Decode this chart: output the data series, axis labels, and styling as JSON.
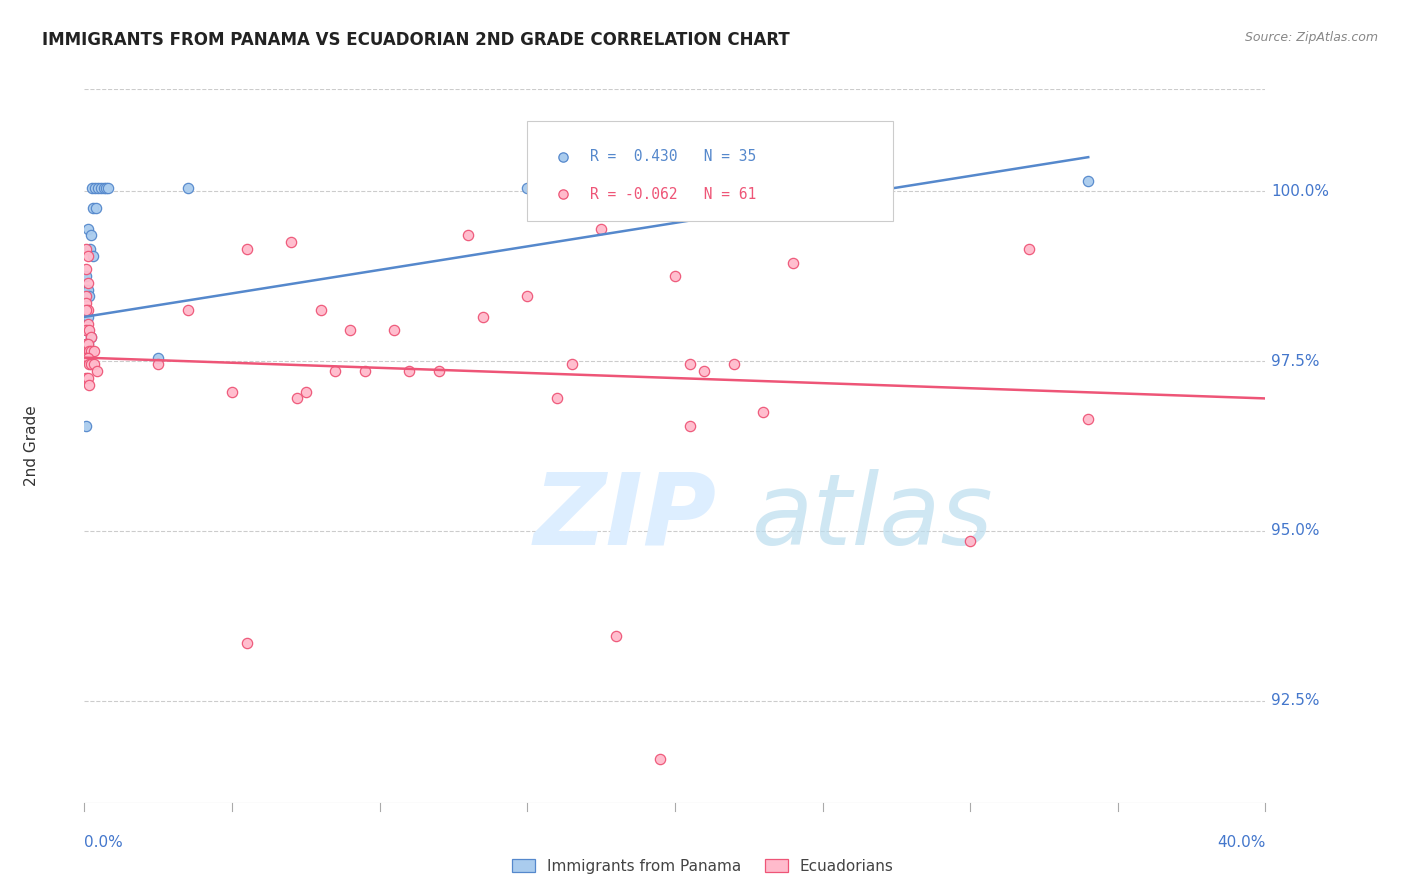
{
  "title": "IMMIGRANTS FROM PANAMA VS ECUADORIAN 2ND GRADE CORRELATION CHART",
  "source": "Source: ZipAtlas.com",
  "ylabel": "2nd Grade",
  "xlim": [
    0.0,
    40.0
  ],
  "ylim": [
    91.0,
    101.5
  ],
  "yticks": [
    92.5,
    95.0,
    97.5,
    100.0
  ],
  "ytick_labels": [
    "92.5%",
    "95.0%",
    "97.5%",
    "100.0%"
  ],
  "legend_label_blue": "Immigrants from Panama",
  "legend_label_pink": "Ecuadorians",
  "blue_scatter": [
    [
      0.25,
      100.05
    ],
    [
      0.35,
      100.05
    ],
    [
      0.45,
      100.05
    ],
    [
      0.55,
      100.05
    ],
    [
      0.65,
      100.05
    ],
    [
      0.72,
      100.05
    ],
    [
      0.8,
      100.05
    ],
    [
      0.28,
      99.75
    ],
    [
      0.38,
      99.75
    ],
    [
      0.12,
      99.45
    ],
    [
      0.22,
      99.35
    ],
    [
      0.18,
      99.15
    ],
    [
      0.28,
      99.05
    ],
    [
      3.5,
      100.05
    ],
    [
      0.06,
      98.75
    ],
    [
      0.06,
      98.55
    ],
    [
      0.06,
      98.45
    ],
    [
      0.12,
      98.55
    ],
    [
      0.16,
      98.45
    ],
    [
      0.06,
      98.25
    ],
    [
      0.12,
      98.15
    ],
    [
      0.06,
      97.95
    ],
    [
      0.12,
      97.95
    ],
    [
      0.22,
      97.85
    ],
    [
      0.06,
      97.75
    ],
    [
      0.12,
      97.75
    ],
    [
      0.16,
      97.65
    ],
    [
      0.06,
      97.55
    ],
    [
      0.12,
      97.55
    ],
    [
      2.5,
      97.55
    ],
    [
      0.06,
      96.55
    ],
    [
      15.0,
      100.05
    ],
    [
      24.0,
      100.1
    ],
    [
      34.0,
      100.15
    ]
  ],
  "pink_scatter": [
    [
      0.06,
      99.15
    ],
    [
      0.12,
      99.05
    ],
    [
      0.06,
      98.85
    ],
    [
      0.12,
      98.65
    ],
    [
      0.06,
      98.45
    ],
    [
      0.06,
      98.35
    ],
    [
      0.12,
      98.25
    ],
    [
      0.06,
      98.25
    ],
    [
      0.12,
      98.05
    ],
    [
      0.06,
      97.95
    ],
    [
      0.16,
      97.95
    ],
    [
      0.22,
      97.85
    ],
    [
      0.06,
      97.75
    ],
    [
      0.12,
      97.75
    ],
    [
      0.16,
      97.65
    ],
    [
      0.22,
      97.65
    ],
    [
      0.32,
      97.65
    ],
    [
      0.06,
      97.55
    ],
    [
      0.12,
      97.55
    ],
    [
      0.16,
      97.45
    ],
    [
      0.22,
      97.45
    ],
    [
      0.32,
      97.45
    ],
    [
      0.42,
      97.35
    ],
    [
      0.06,
      97.25
    ],
    [
      0.12,
      97.25
    ],
    [
      0.16,
      97.15
    ],
    [
      2.5,
      97.45
    ],
    [
      3.5,
      98.25
    ],
    [
      5.0,
      97.05
    ],
    [
      5.5,
      99.15
    ],
    [
      7.0,
      99.25
    ],
    [
      7.5,
      97.05
    ],
    [
      8.0,
      98.25
    ],
    [
      8.5,
      97.35
    ],
    [
      9.5,
      97.35
    ],
    [
      10.5,
      97.95
    ],
    [
      11.0,
      97.35
    ],
    [
      12.0,
      97.35
    ],
    [
      13.0,
      99.35
    ],
    [
      13.5,
      98.15
    ],
    [
      15.0,
      98.45
    ],
    [
      16.0,
      96.95
    ],
    [
      16.5,
      97.45
    ],
    [
      17.5,
      99.45
    ],
    [
      20.0,
      98.75
    ],
    [
      20.5,
      97.45
    ],
    [
      21.0,
      97.35
    ],
    [
      22.0,
      97.45
    ],
    [
      24.0,
      98.95
    ],
    [
      7.2,
      96.95
    ],
    [
      30.0,
      94.85
    ],
    [
      18.0,
      93.45
    ],
    [
      19.5,
      91.65
    ],
    [
      5.5,
      93.35
    ],
    [
      23.0,
      96.75
    ],
    [
      20.5,
      96.55
    ],
    [
      34.0,
      96.65
    ],
    [
      32.0,
      99.15
    ],
    [
      9.0,
      97.95
    ]
  ],
  "blue_line": {
    "x0": 0.0,
    "y0": 98.15,
    "x1": 34.0,
    "y1": 100.5
  },
  "pink_line": {
    "x0": 0.0,
    "y0": 97.55,
    "x1": 40.0,
    "y1": 96.95
  },
  "blue_color": "#5588cc",
  "pink_color": "#ee5577",
  "blue_fill_color": "#aaccee",
  "pink_fill_color": "#ffbbcc",
  "grid_color": "#cccccc",
  "background_color": "#ffffff",
  "title_fontsize": 12,
  "axis_color": "#4477cc",
  "source_color": "#888888"
}
